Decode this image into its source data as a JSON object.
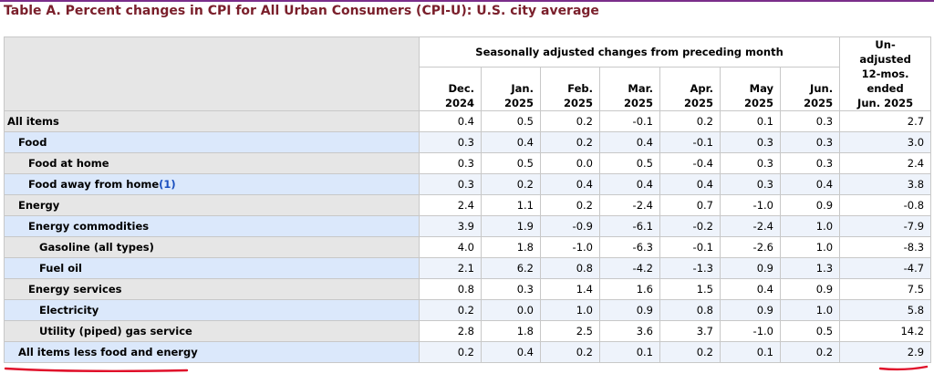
{
  "title": "Table A. Percent changes in CPI for All Urban Consumers (CPI-U): U.S. city average",
  "header": {
    "group_label": "Seasonally adjusted changes from preceding month",
    "months": [
      {
        "line1": "Dec.",
        "line2": "2024"
      },
      {
        "line1": "Jan.",
        "line2": "2025"
      },
      {
        "line1": "Feb.",
        "line2": "2025"
      },
      {
        "line1": "Mar.",
        "line2": "2025"
      },
      {
        "line1": "Apr.",
        "line2": "2025"
      },
      {
        "line1": "May",
        "line2": "2025"
      },
      {
        "line1": "Jun.",
        "line2": "2025"
      }
    ],
    "unadjusted": {
      "line1": "Un-",
      "line2": "adjusted",
      "line3": "12-mos.",
      "line4": "ended",
      "line5": "Jun. 2025"
    }
  },
  "rows": [
    {
      "label": "All items",
      "footnote": "",
      "level": 0,
      "values": [
        "0.4",
        "0.5",
        "0.2",
        "-0.1",
        "0.2",
        "0.1",
        "0.3",
        "2.7"
      ]
    },
    {
      "label": "Food",
      "footnote": "",
      "level": 1,
      "values": [
        "0.3",
        "0.4",
        "0.2",
        "0.4",
        "-0.1",
        "0.3",
        "0.3",
        "3.0"
      ]
    },
    {
      "label": "Food at home",
      "footnote": "",
      "level": 2,
      "values": [
        "0.3",
        "0.5",
        "0.0",
        "0.5",
        "-0.4",
        "0.3",
        "0.3",
        "2.4"
      ]
    },
    {
      "label": "Food away from home",
      "footnote": "(1)",
      "level": 2,
      "values": [
        "0.3",
        "0.2",
        "0.4",
        "0.4",
        "0.4",
        "0.3",
        "0.4",
        "3.8"
      ]
    },
    {
      "label": "Energy",
      "footnote": "",
      "level": 1,
      "values": [
        "2.4",
        "1.1",
        "0.2",
        "-2.4",
        "0.7",
        "-1.0",
        "0.9",
        "-0.8"
      ]
    },
    {
      "label": "Energy commodities",
      "footnote": "",
      "level": 2,
      "values": [
        "3.9",
        "1.9",
        "-0.9",
        "-6.1",
        "-0.2",
        "-2.4",
        "1.0",
        "-7.9"
      ]
    },
    {
      "label": "Gasoline (all types)",
      "footnote": "",
      "level": 3,
      "values": [
        "4.0",
        "1.8",
        "-1.0",
        "-6.3",
        "-0.1",
        "-2.6",
        "1.0",
        "-8.3"
      ]
    },
    {
      "label": "Fuel oil",
      "footnote": "",
      "level": 3,
      "values": [
        "2.1",
        "6.2",
        "0.8",
        "-4.2",
        "-1.3",
        "0.9",
        "1.3",
        "-4.7"
      ]
    },
    {
      "label": "Energy services",
      "footnote": "",
      "level": 2,
      "values": [
        "0.8",
        "0.3",
        "1.4",
        "1.6",
        "1.5",
        "0.4",
        "0.9",
        "7.5"
      ]
    },
    {
      "label": "Electricity",
      "footnote": "",
      "level": 3,
      "values": [
        "0.2",
        "0.0",
        "1.0",
        "0.9",
        "0.8",
        "0.9",
        "1.0",
        "5.8"
      ]
    },
    {
      "label": "Utility (piped) gas service",
      "footnote": "",
      "level": 3,
      "values": [
        "2.8",
        "1.8",
        "2.5",
        "3.6",
        "3.7",
        "-1.0",
        "0.5",
        "14.2"
      ]
    },
    {
      "label": "All items less food and energy",
      "footnote": "",
      "level": 1,
      "values": [
        "0.2",
        "0.4",
        "0.2",
        "0.1",
        "0.2",
        "0.1",
        "0.2",
        "2.9"
      ]
    }
  ],
  "colors": {
    "title": "#7a1f2b",
    "stub_odd": "#e6e6e6",
    "stub_even": "#dbe8fb",
    "annotation": "#e0102a",
    "footnote_link": "#1a4fbf"
  }
}
